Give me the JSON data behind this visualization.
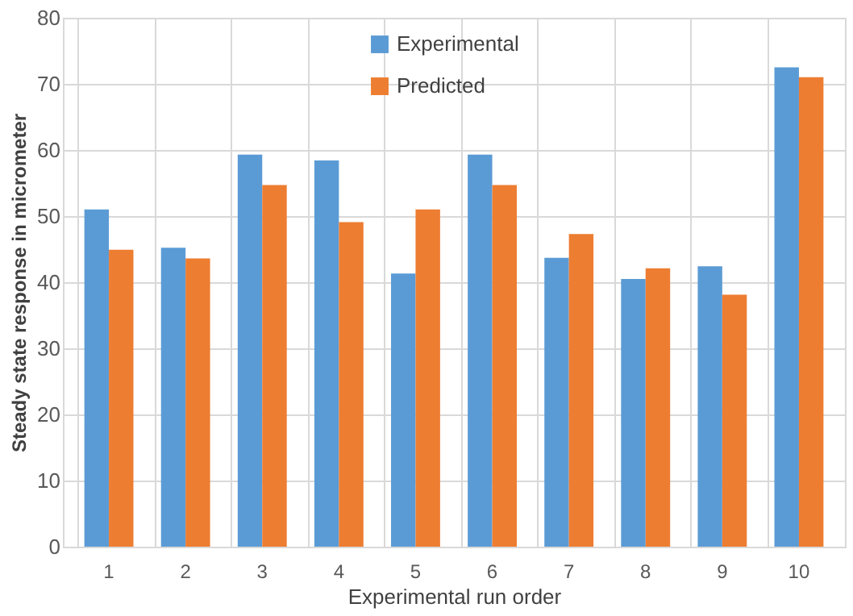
{
  "chart_data": {
    "type": "bar",
    "xlabel": "Experimental run order",
    "ylabel": "Steady state response  in micrometer",
    "categories": [
      "1",
      "2",
      "3",
      "4",
      "5",
      "6",
      "7",
      "8",
      "9",
      "10"
    ],
    "series": [
      {
        "name": "Experimental",
        "color": "#5b9bd5",
        "values": [
          51,
          45.2,
          59.3,
          58.4,
          41.3,
          59.3,
          43.7,
          40.5,
          42.4,
          72.5
        ]
      },
      {
        "name": "Predicted",
        "color": "#ed7d31",
        "values": [
          44.9,
          43.6,
          54.7,
          49.1,
          51,
          54.7,
          47.3,
          42.1,
          38.1,
          71
        ]
      }
    ],
    "ylim": [
      0,
      80
    ],
    "yticks": [
      0,
      10,
      20,
      30,
      40,
      50,
      60,
      70,
      80
    ],
    "grid": true,
    "legend": "top"
  }
}
